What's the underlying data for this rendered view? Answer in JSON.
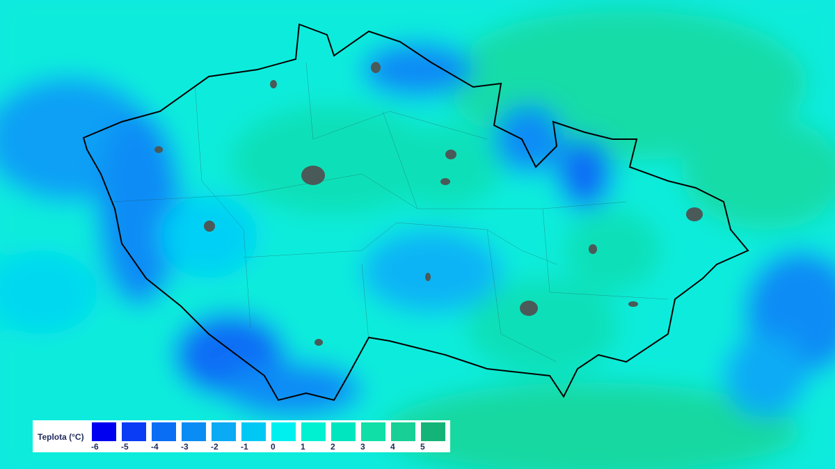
{
  "legend": {
    "title": "Teplota (°C)",
    "ticks": [
      "-6",
      "-5",
      "-4",
      "-3",
      "-2",
      "-1",
      "0",
      "1",
      "2",
      "3",
      "4",
      "5"
    ],
    "colors": [
      "#0000f0",
      "#0a3cf5",
      "#0a6ef5",
      "#0a8cf5",
      "#0aaaf5",
      "#00c8f5",
      "#00f0f0",
      "#00f0d2",
      "#00e6be",
      "#10e0a8",
      "#18d096",
      "#14b478"
    ]
  },
  "map": {
    "variable": "temperature",
    "border_color": "#000000",
    "city_color": "#4a5a58"
  }
}
